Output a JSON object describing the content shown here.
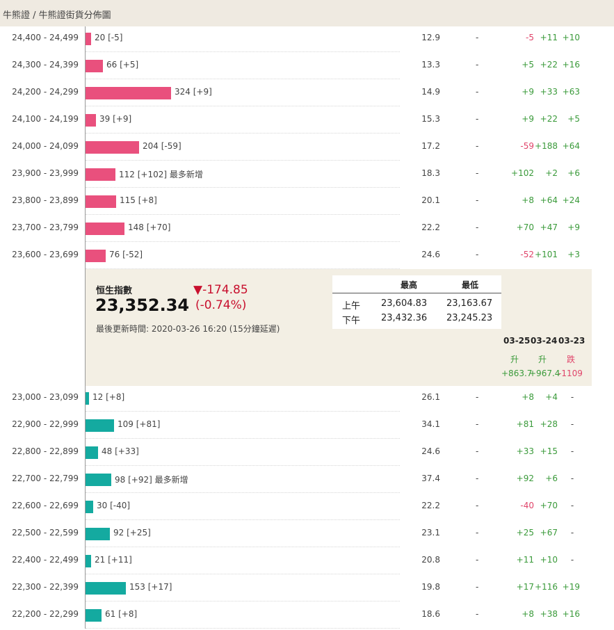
{
  "breadcrumb": "牛熊證 / 牛熊證街貨分佈圖",
  "bull_rows": [
    {
      "range": "24,400 - 24,499",
      "count": 20,
      "label": "20 [-5]",
      "note": "",
      "ratio": "12.9",
      "dash": "-",
      "c1": "-5",
      "c2": "+11",
      "c3": "+10"
    },
    {
      "range": "24,300 - 24,399",
      "count": 66,
      "label": "66 [+5]",
      "note": "",
      "ratio": "13.3",
      "dash": "-",
      "c1": "+5",
      "c2": "+22",
      "c3": "+16"
    },
    {
      "range": "24,200 - 24,299",
      "count": 324,
      "label": "324 [+9]",
      "note": "",
      "ratio": "14.9",
      "dash": "-",
      "c1": "+9",
      "c2": "+33",
      "c3": "+63"
    },
    {
      "range": "24,100 - 24,199",
      "count": 39,
      "label": "39 [+9]",
      "note": "",
      "ratio": "15.3",
      "dash": "-",
      "c1": "+9",
      "c2": "+22",
      "c3": "+5"
    },
    {
      "range": "24,000 - 24,099",
      "count": 204,
      "label": "204 [-59]",
      "note": "",
      "ratio": "17.2",
      "dash": "-",
      "c1": "-59",
      "c2": "+188",
      "c3": "+64"
    },
    {
      "range": "23,900 - 23,999",
      "count": 112,
      "label": "112 [+102]",
      "note": "最多新增",
      "ratio": "18.3",
      "dash": "-",
      "c1": "+102",
      "c2": "+2",
      "c3": "+6"
    },
    {
      "range": "23,800 - 23,899",
      "count": 115,
      "label": "115 [+8]",
      "note": "",
      "ratio": "20.1",
      "dash": "-",
      "c1": "+8",
      "c2": "+64",
      "c3": "+24"
    },
    {
      "range": "23,700 - 23,799",
      "count": 148,
      "label": "148 [+70]",
      "note": "",
      "ratio": "22.2",
      "dash": "-",
      "c1": "+70",
      "c2": "+47",
      "c3": "+9"
    },
    {
      "range": "23,600 - 23,699",
      "count": 76,
      "label": "76 [-52]",
      "note": "",
      "ratio": "24.6",
      "dash": "-",
      "c1": "-52",
      "c2": "+101",
      "c3": "+3"
    }
  ],
  "bear_rows": [
    {
      "range": "23,000 - 23,099",
      "count": 12,
      "label": "12 [+8]",
      "note": "",
      "ratio": "26.1",
      "dash": "-",
      "c1": "+8",
      "c2": "+4",
      "c3": "-"
    },
    {
      "range": "22,900 - 22,999",
      "count": 109,
      "label": "109 [+81]",
      "note": "",
      "ratio": "34.1",
      "dash": "-",
      "c1": "+81",
      "c2": "+28",
      "c3": "-"
    },
    {
      "range": "22,800 - 22,899",
      "count": 48,
      "label": "48 [+33]",
      "note": "",
      "ratio": "24.6",
      "dash": "-",
      "c1": "+33",
      "c2": "+15",
      "c3": "-"
    },
    {
      "range": "22,700 - 22,799",
      "count": 98,
      "label": "98 [+92]",
      "note": "最多新增",
      "ratio": "37.4",
      "dash": "-",
      "c1": "+92",
      "c2": "+6",
      "c3": "-"
    },
    {
      "range": "22,600 - 22,699",
      "count": 30,
      "label": "30 [-40]",
      "note": "",
      "ratio": "22.2",
      "dash": "-",
      "c1": "-40",
      "c2": "+70",
      "c3": "-"
    },
    {
      "range": "22,500 - 22,599",
      "count": 92,
      "label": "92 [+25]",
      "note": "",
      "ratio": "23.1",
      "dash": "-",
      "c1": "+25",
      "c2": "+67",
      "c3": "-"
    },
    {
      "range": "22,400 - 22,499",
      "count": 21,
      "label": "21 [+11]",
      "note": "",
      "ratio": "20.8",
      "dash": "-",
      "c1": "+11",
      "c2": "+10",
      "c3": "-"
    },
    {
      "range": "22,300 - 22,399",
      "count": 153,
      "label": "153 [+17]",
      "note": "",
      "ratio": "19.8",
      "dash": "-",
      "c1": "+17",
      "c2": "+116",
      "c3": "+19"
    },
    {
      "range": "22,200 - 22,299",
      "count": 61,
      "label": "61 [+8]",
      "note": "",
      "ratio": "18.6",
      "dash": "-",
      "c1": "+8",
      "c2": "+38",
      "c3": "+16"
    }
  ],
  "index_panel": {
    "name": "恒生指數",
    "value": "23,352.34",
    "change": "▼-174.85",
    "change_pct": "(-0.74%)",
    "updated": "最後更新時間: 2020-03-26 16:20 (15分鐘延遲)",
    "hl_header_high": "最高",
    "hl_header_low": "最低",
    "am_label": "上午",
    "am_high": "23,604.83",
    "am_low": "23,163.67",
    "pm_label": "下午",
    "pm_high": "23,432.36",
    "pm_low": "23,245.23",
    "days": [
      {
        "date": "03-25",
        "dir": "升",
        "value": "+863.7"
      },
      {
        "date": "03-24",
        "dir": "升",
        "value": "+967.4"
      },
      {
        "date": "03-23",
        "dir": "跌",
        "value": "-1109"
      }
    ]
  },
  "colors": {
    "bull": "#e9507d",
    "bear": "#14aaa0",
    "up": "#3a9a3a",
    "down": "#e0446a",
    "index_down": "#c8102e",
    "panel_bg": "#f3efe4"
  },
  "chart_data": {
    "type": "bar",
    "title": "牛熊證街貨分佈圖",
    "bull_categories": [
      "24,400 - 24,499",
      "24,300 - 24,399",
      "24,200 - 24,299",
      "24,100 - 24,199",
      "24,000 - 24,099",
      "23,900 - 23,999",
      "23,800 - 23,899",
      "23,700 - 23,799",
      "23,600 - 23,699"
    ],
    "bull_values": [
      20,
      66,
      324,
      39,
      204,
      112,
      115,
      148,
      76
    ],
    "bear_categories": [
      "23,000 - 23,099",
      "22,900 - 22,999",
      "22,800 - 22,899",
      "22,700 - 22,799",
      "22,600 - 22,699",
      "22,500 - 22,599",
      "22,400 - 22,499",
      "22,300 - 22,399",
      "22,200 - 22,299"
    ],
    "bear_values": [
      12,
      109,
      48,
      98,
      30,
      92,
      21,
      153,
      61
    ]
  }
}
